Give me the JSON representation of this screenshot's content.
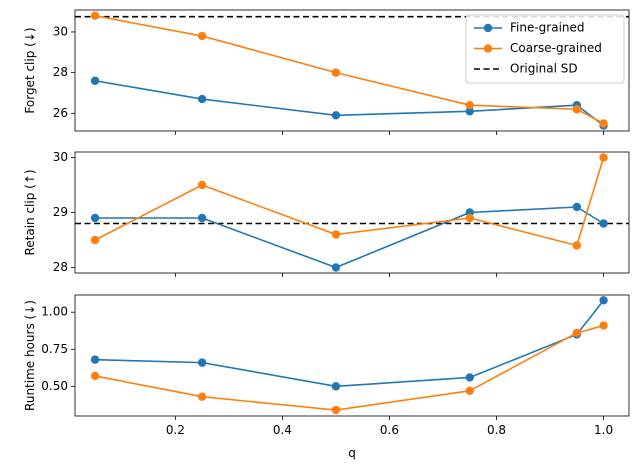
{
  "chart_data": {
    "type": "line",
    "xlabel": "q",
    "x_ticks": [
      0.2,
      0.4,
      0.6,
      0.8,
      1.0
    ],
    "x_tick_labels": [
      "0.2",
      "0.4",
      "0.6",
      "0.8",
      "1.0"
    ],
    "xlim": [
      0.0125,
      1.0475
    ],
    "colors": {
      "fine": "#1f77b4",
      "coarse": "#ff7f0e",
      "reference": "#000000"
    },
    "legend": {
      "placement": "top-right",
      "entries": [
        "Fine-grained",
        "Coarse-grained",
        "Original SD"
      ]
    },
    "panels": [
      {
        "ylabel": "Forget clip (↓)",
        "ylim": [
          25.13,
          31.08
        ],
        "y_ticks": [
          26,
          28,
          30
        ],
        "y_tick_labels": [
          "26",
          "28",
          "30"
        ],
        "show_x_ticklabels": false,
        "reference": 30.75,
        "series": [
          {
            "name": "Fine-grained",
            "x": [
              0.05,
              0.25,
              0.5,
              0.75,
              0.95,
              1.0
            ],
            "values": [
              27.6,
              26.7,
              25.9,
              26.1,
              26.4,
              25.4
            ]
          },
          {
            "name": "Coarse-grained",
            "x": [
              0.05,
              0.25,
              0.5,
              0.75,
              0.95,
              1.0
            ],
            "values": [
              30.8,
              29.8,
              28.0,
              26.4,
              26.2,
              25.5
            ]
          }
        ]
      },
      {
        "ylabel": "Retain clip (↑)",
        "ylim": [
          27.9,
          30.1
        ],
        "y_ticks": [
          28,
          29,
          30
        ],
        "y_tick_labels": [
          "28",
          "29",
          "30"
        ],
        "show_x_ticklabels": false,
        "reference": 28.8,
        "series": [
          {
            "name": "Fine-grained",
            "x": [
              0.05,
              0.25,
              0.5,
              0.75,
              0.95,
              1.0
            ],
            "values": [
              28.9,
              28.9,
              28.0,
              29.0,
              29.1,
              28.8
            ]
          },
          {
            "name": "Coarse-grained",
            "x": [
              0.05,
              0.25,
              0.5,
              0.75,
              0.95,
              1.0
            ],
            "values": [
              28.5,
              29.5,
              28.6,
              28.9,
              28.4,
              30.0
            ]
          }
        ]
      },
      {
        "ylabel": "Runtime hours (↓)",
        "ylim": [
          0.3,
          1.116
        ],
        "y_ticks": [
          0.5,
          0.75,
          1.0
        ],
        "y_tick_labels": [
          "0.50",
          "0.75",
          "1.00"
        ],
        "show_x_ticklabels": true,
        "reference": null,
        "series": [
          {
            "name": "Fine-grained",
            "x": [
              0.05,
              0.25,
              0.5,
              0.75,
              0.95,
              1.0
            ],
            "values": [
              0.68,
              0.66,
              0.5,
              0.56,
              0.85,
              1.08
            ]
          },
          {
            "name": "Coarse-grained",
            "x": [
              0.05,
              0.25,
              0.5,
              0.75,
              0.95,
              1.0
            ],
            "values": [
              0.57,
              0.43,
              0.34,
              0.47,
              0.86,
              0.91
            ]
          }
        ]
      }
    ]
  }
}
